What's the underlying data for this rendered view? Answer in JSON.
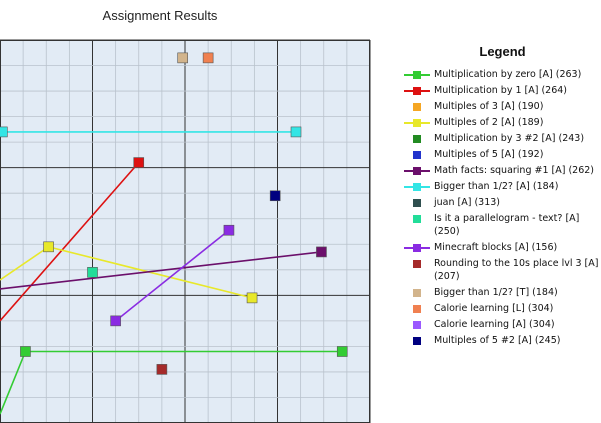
{
  "chart_data": {
    "type": "scatter",
    "title": "Assignment Results",
    "legend_title": "Legend",
    "legend_placement": "right",
    "grid": true,
    "xlabel": "",
    "ylabel": "",
    "series": [
      {
        "name": "Multiplication by zero [A] (263)",
        "color": "#33cc33",
        "marker": "square",
        "points": [
          [
            0.0,
            0.35
          ],
          [
            0.55,
            2.8
          ],
          [
            7.4,
            2.8
          ]
        ]
      },
      {
        "name": "Multiplication by 1 [A] (264)",
        "color": "#dd1111",
        "marker": "square",
        "points": [
          [
            0.0,
            4.0
          ],
          [
            3.0,
            10.2
          ]
        ]
      },
      {
        "name": "Multiples of 3 [A] (190)",
        "color": "#f5a623",
        "marker": "square",
        "points": []
      },
      {
        "name": "Multiples of 2 [A] (189)",
        "color": "#e8e82a",
        "marker": "square",
        "points": [
          [
            0.0,
            5.6
          ],
          [
            1.05,
            6.9
          ],
          [
            5.45,
            4.9
          ]
        ]
      },
      {
        "name": "Multiplication by 3 #2 [A] (243)",
        "color": "#228b22",
        "marker": "square",
        "points": []
      },
      {
        "name": "Multiples of 5 [A] (192)",
        "color": "#2233cc",
        "marker": "square",
        "points": []
      },
      {
        "name": "Math facts: squaring #1 [A] (262)",
        "color": "#6b0f6b",
        "marker": "square",
        "points": [
          [
            0.0,
            5.25
          ],
          [
            6.95,
            6.7
          ]
        ]
      },
      {
        "name": "Bigger than 1/2? [A] (184)",
        "color": "#33e5e5",
        "marker": "square",
        "points": [
          [
            0.05,
            11.4
          ],
          [
            6.4,
            11.4
          ]
        ]
      },
      {
        "name": "juan [A] (313)",
        "color": "#2f4f4f",
        "marker": "square",
        "points": []
      },
      {
        "name": "Is it a parallelogram - text? [A] (250)",
        "color": "#22dd99",
        "marker": "square",
        "points": [
          [
            2.0,
            5.9
          ]
        ]
      },
      {
        "name": "Minecraft blocks [A] (156)",
        "color": "#8a2be2",
        "marker": "square",
        "points": [
          [
            2.5,
            4.0
          ],
          [
            4.95,
            7.55
          ]
        ]
      },
      {
        "name": "Rounding to the 10s place lvl 3 [A] (207)",
        "color": "#a52a2a",
        "marker": "square",
        "points": [
          [
            3.5,
            2.1
          ]
        ]
      },
      {
        "name": "Bigger than 1/2? [T] (184)",
        "color": "#d2b48c",
        "marker": "square",
        "points": [
          [
            3.95,
            14.3
          ]
        ]
      },
      {
        "name": "Calorie learning [L] (304)",
        "color": "#f08050",
        "marker": "square",
        "points": [
          [
            4.5,
            14.3
          ]
        ]
      },
      {
        "name": "Calorie learning [A] (304)",
        "color": "#9b59ff",
        "marker": "square",
        "points": []
      },
      {
        "name": "Multiples of 5 #2 [A] (245)",
        "color": "#000080",
        "marker": "square",
        "points": [
          [
            5.95,
            8.9
          ]
        ]
      }
    ],
    "xlim": [
      0,
      8
    ],
    "ylim": [
      0,
      15
    ]
  }
}
